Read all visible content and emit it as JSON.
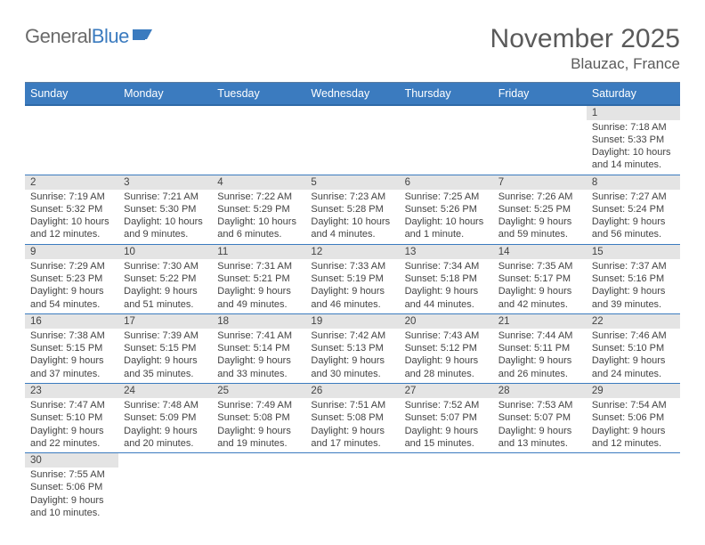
{
  "logo": {
    "general": "General",
    "blue": "Blue"
  },
  "title": "November 2025",
  "location": "Blauzac, France",
  "dayHeaders": [
    "Sunday",
    "Monday",
    "Tuesday",
    "Wednesday",
    "Thursday",
    "Friday",
    "Saturday"
  ],
  "colors": {
    "headerBg": "#3b7bbf",
    "headerText": "#ffffff",
    "dayStripe": "#e4e4e4",
    "rule": "#3b7bbf",
    "bodyText": "#434343",
    "titleText": "#5a5a5a"
  },
  "weeks": [
    [
      null,
      null,
      null,
      null,
      null,
      null,
      {
        "n": 1,
        "sunrise": "7:18 AM",
        "sunset": "5:33 PM",
        "daylight": "10 hours and 14 minutes."
      }
    ],
    [
      {
        "n": 2,
        "sunrise": "7:19 AM",
        "sunset": "5:32 PM",
        "daylight": "10 hours and 12 minutes."
      },
      {
        "n": 3,
        "sunrise": "7:21 AM",
        "sunset": "5:30 PM",
        "daylight": "10 hours and 9 minutes."
      },
      {
        "n": 4,
        "sunrise": "7:22 AM",
        "sunset": "5:29 PM",
        "daylight": "10 hours and 6 minutes."
      },
      {
        "n": 5,
        "sunrise": "7:23 AM",
        "sunset": "5:28 PM",
        "daylight": "10 hours and 4 minutes."
      },
      {
        "n": 6,
        "sunrise": "7:25 AM",
        "sunset": "5:26 PM",
        "daylight": "10 hours and 1 minute."
      },
      {
        "n": 7,
        "sunrise": "7:26 AM",
        "sunset": "5:25 PM",
        "daylight": "9 hours and 59 minutes."
      },
      {
        "n": 8,
        "sunrise": "7:27 AM",
        "sunset": "5:24 PM",
        "daylight": "9 hours and 56 minutes."
      }
    ],
    [
      {
        "n": 9,
        "sunrise": "7:29 AM",
        "sunset": "5:23 PM",
        "daylight": "9 hours and 54 minutes."
      },
      {
        "n": 10,
        "sunrise": "7:30 AM",
        "sunset": "5:22 PM",
        "daylight": "9 hours and 51 minutes."
      },
      {
        "n": 11,
        "sunrise": "7:31 AM",
        "sunset": "5:21 PM",
        "daylight": "9 hours and 49 minutes."
      },
      {
        "n": 12,
        "sunrise": "7:33 AM",
        "sunset": "5:19 PM",
        "daylight": "9 hours and 46 minutes."
      },
      {
        "n": 13,
        "sunrise": "7:34 AM",
        "sunset": "5:18 PM",
        "daylight": "9 hours and 44 minutes."
      },
      {
        "n": 14,
        "sunrise": "7:35 AM",
        "sunset": "5:17 PM",
        "daylight": "9 hours and 42 minutes."
      },
      {
        "n": 15,
        "sunrise": "7:37 AM",
        "sunset": "5:16 PM",
        "daylight": "9 hours and 39 minutes."
      }
    ],
    [
      {
        "n": 16,
        "sunrise": "7:38 AM",
        "sunset": "5:15 PM",
        "daylight": "9 hours and 37 minutes."
      },
      {
        "n": 17,
        "sunrise": "7:39 AM",
        "sunset": "5:15 PM",
        "daylight": "9 hours and 35 minutes."
      },
      {
        "n": 18,
        "sunrise": "7:41 AM",
        "sunset": "5:14 PM",
        "daylight": "9 hours and 33 minutes."
      },
      {
        "n": 19,
        "sunrise": "7:42 AM",
        "sunset": "5:13 PM",
        "daylight": "9 hours and 30 minutes."
      },
      {
        "n": 20,
        "sunrise": "7:43 AM",
        "sunset": "5:12 PM",
        "daylight": "9 hours and 28 minutes."
      },
      {
        "n": 21,
        "sunrise": "7:44 AM",
        "sunset": "5:11 PM",
        "daylight": "9 hours and 26 minutes."
      },
      {
        "n": 22,
        "sunrise": "7:46 AM",
        "sunset": "5:10 PM",
        "daylight": "9 hours and 24 minutes."
      }
    ],
    [
      {
        "n": 23,
        "sunrise": "7:47 AM",
        "sunset": "5:10 PM",
        "daylight": "9 hours and 22 minutes."
      },
      {
        "n": 24,
        "sunrise": "7:48 AM",
        "sunset": "5:09 PM",
        "daylight": "9 hours and 20 minutes."
      },
      {
        "n": 25,
        "sunrise": "7:49 AM",
        "sunset": "5:08 PM",
        "daylight": "9 hours and 19 minutes."
      },
      {
        "n": 26,
        "sunrise": "7:51 AM",
        "sunset": "5:08 PM",
        "daylight": "9 hours and 17 minutes."
      },
      {
        "n": 27,
        "sunrise": "7:52 AM",
        "sunset": "5:07 PM",
        "daylight": "9 hours and 15 minutes."
      },
      {
        "n": 28,
        "sunrise": "7:53 AM",
        "sunset": "5:07 PM",
        "daylight": "9 hours and 13 minutes."
      },
      {
        "n": 29,
        "sunrise": "7:54 AM",
        "sunset": "5:06 PM",
        "daylight": "9 hours and 12 minutes."
      }
    ],
    [
      {
        "n": 30,
        "sunrise": "7:55 AM",
        "sunset": "5:06 PM",
        "daylight": "9 hours and 10 minutes."
      },
      null,
      null,
      null,
      null,
      null,
      null
    ]
  ],
  "labels": {
    "sunrise": "Sunrise:",
    "sunset": "Sunset:",
    "daylight": "Daylight:"
  }
}
